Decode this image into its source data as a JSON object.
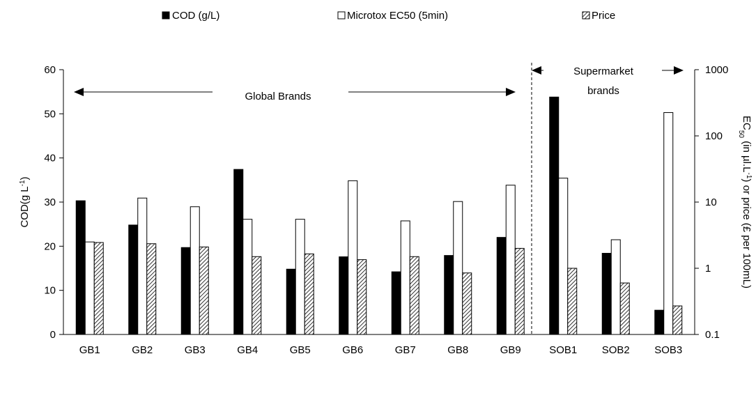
{
  "chart_data": {
    "type": "bar",
    "categories": [
      "GB1",
      "GB2",
      "GB3",
      "GB4",
      "GB5",
      "GB6",
      "GB7",
      "GB8",
      "GB9",
      "SOB1",
      "SOB2",
      "SOB3"
    ],
    "series": [
      {
        "name": "COD (g/L)",
        "axis": "left",
        "color": "#000000",
        "fill": "solid",
        "values": [
          30.3,
          24.8,
          19.7,
          37.4,
          14.8,
          17.6,
          14.2,
          17.9,
          22.0,
          53.8,
          18.4,
          5.5
        ]
      },
      {
        "name": "Microtox EC50 (5min)",
        "axis": "right",
        "color": "#ffffff",
        "fill": "outline",
        "values": [
          2.5,
          11.5,
          8.5,
          5.5,
          5.5,
          21,
          5.2,
          10.2,
          18,
          23,
          2.7,
          225
        ]
      },
      {
        "name": "Price",
        "axis": "right",
        "color": "#ffffff",
        "fill": "hatched",
        "values": [
          2.45,
          2.35,
          2.1,
          1.5,
          1.65,
          1.35,
          1.5,
          0.85,
          2.0,
          1.0,
          0.6,
          0.27
        ]
      }
    ],
    "y_left": {
      "label_main": "COD(g L",
      "label_sup": "-1",
      "label_end": ")",
      "min": 0,
      "max": 60,
      "ticks": [
        0,
        10,
        20,
        30,
        40,
        50,
        60
      ]
    },
    "y_right": {
      "scale": "log",
      "min": 0.1,
      "max": 1000,
      "ticks": [
        0.1,
        1,
        10,
        100,
        1000
      ],
      "tick_labels": [
        "0.1",
        "1",
        "10",
        "100",
        "1000"
      ],
      "label_a": "EC",
      "label_sub": "50",
      "label_b": " (in µl.L",
      "label_sup": "-1",
      "label_c": ") or price (£ per 100mL)"
    },
    "legend": {
      "position": "top",
      "entries": [
        "COD (g/L)",
        "Microtox EC50 (5min)",
        "Price"
      ]
    },
    "annotations": {
      "global": "Global Brands",
      "supermarket_line1": "Supermarket",
      "supermarket_line2": "brands"
    },
    "grid": false
  }
}
